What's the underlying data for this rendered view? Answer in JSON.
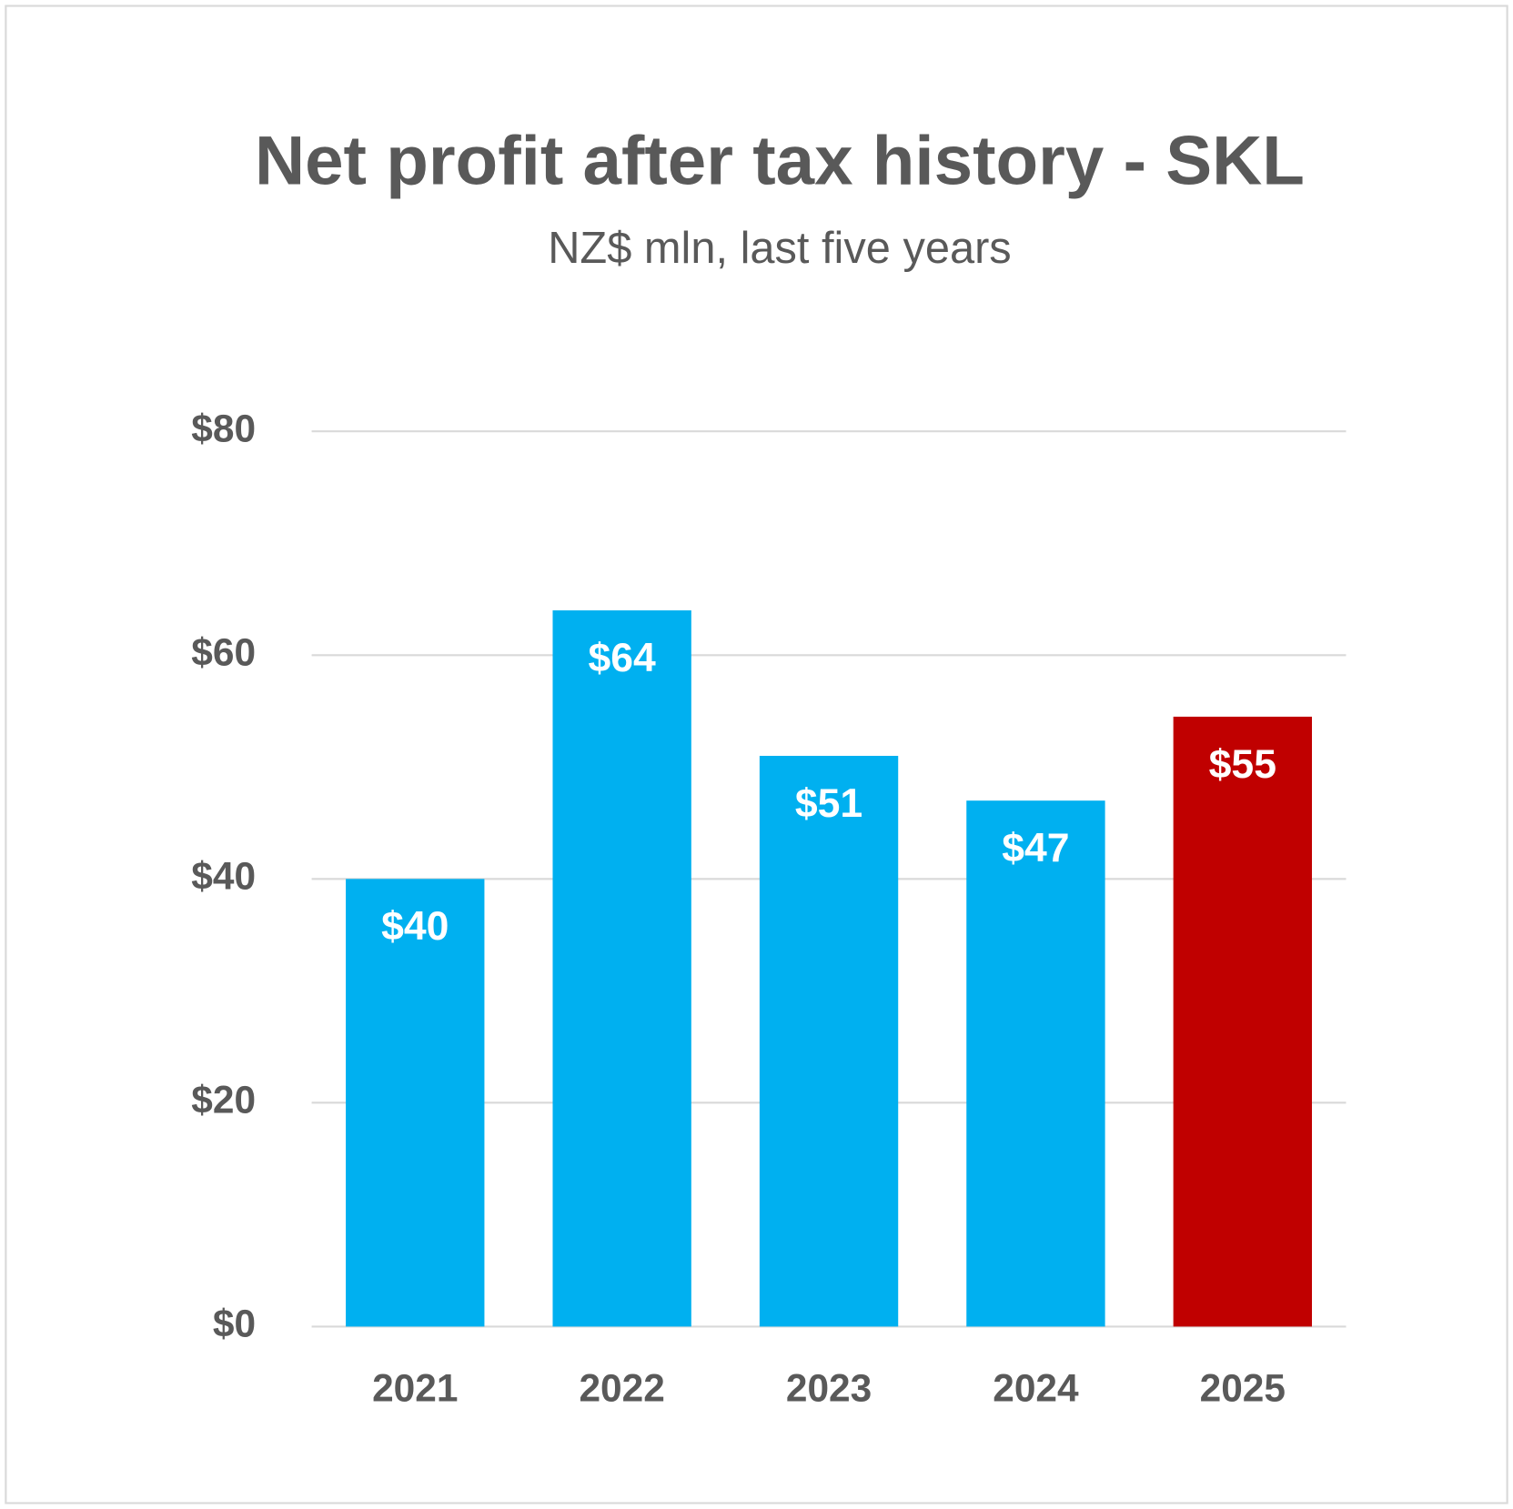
{
  "chart_data": {
    "type": "bar",
    "title": "Net profit after tax history - SKL",
    "subtitle": "NZ$ mln, last five years",
    "categories": [
      "2021",
      "2022",
      "2023",
      "2024",
      "2025"
    ],
    "values": [
      40,
      64,
      51,
      47,
      54.5
    ],
    "value_labels": [
      "$40",
      "$64",
      "$51",
      "$47",
      "$55"
    ],
    "colors": [
      "#00b0f0",
      "#00b0f0",
      "#00b0f0",
      "#00b0f0",
      "#c00000"
    ],
    "ylim": [
      0,
      80
    ],
    "yticks": [
      {
        "value": 0,
        "label": "$0"
      },
      {
        "value": 20,
        "label": "$20"
      },
      {
        "value": 40,
        "label": "$40"
      },
      {
        "value": 60,
        "label": "$60"
      },
      {
        "value": 80,
        "label": "$80"
      }
    ],
    "grid": true
  }
}
